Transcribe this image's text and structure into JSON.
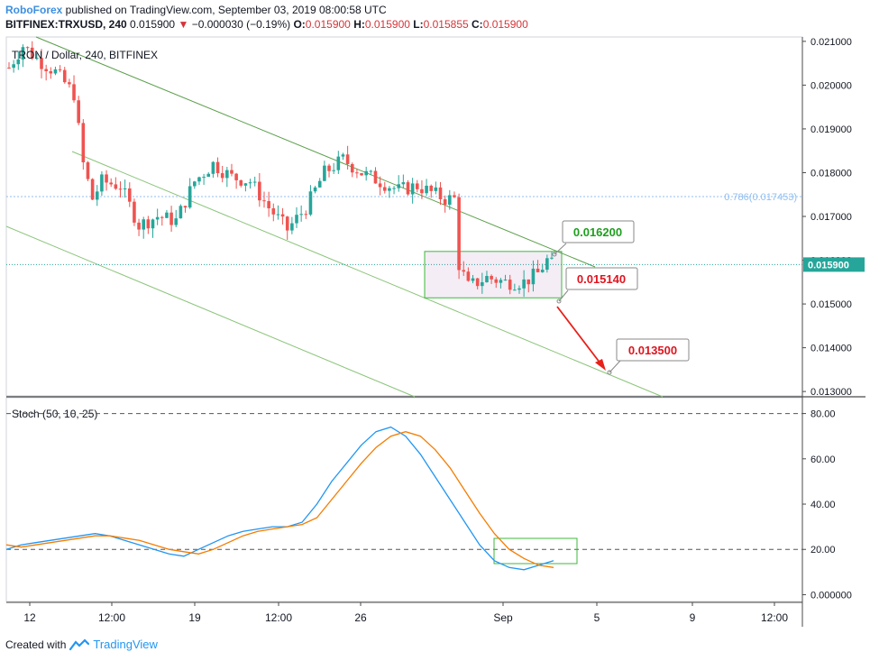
{
  "header": {
    "brand": "RoboForex",
    "published": " published on TradingView.com, September 03, 2019 08:00:58 UTC",
    "symbol": "BITFINEX:TRXUSD, 240",
    "last": "0.015900",
    "change_arrow": "▼",
    "change": "−0.000030 (−0.19%)",
    "o_label": "O:",
    "o_value": "0.015900",
    "h_label": "H:",
    "h_value": "0.015900",
    "l_label": "L:",
    "l_value": "0.015855",
    "c_label": "C:",
    "c_value": "0.015900"
  },
  "footer": {
    "created_with": "Created with",
    "brand": "TradingView"
  },
  "colors": {
    "up": "#26a69a",
    "down": "#ef5350",
    "channel": "#5b9e4a",
    "price_line": "#26a69a",
    "stoch_k": "#2196f3",
    "stoch_d": "#f57c00",
    "fib": "#90bff0"
  },
  "chart_data": [
    {
      "type": "candlestick",
      "legend": "TRON / Dollar, 240, BITFINEX",
      "ylim": [
        0.0129,
        0.0211
      ],
      "y_ticks": [
        "0.021000",
        "0.020000",
        "0.019000",
        "0.018000",
        "0.017000",
        "0.016000",
        "0.015000",
        "0.014000",
        "0.013000"
      ],
      "x_ticks": [
        "12",
        "12:00",
        "19",
        "12:00",
        "26",
        "Sep",
        "5",
        "9",
        "12:00"
      ],
      "current_price": "0.015900",
      "fib_label": "0.786(0.017453)",
      "fib_level": 0.017453,
      "callouts": [
        {
          "text": "0.016200",
          "color": "#1e9e1e"
        },
        {
          "text": "0.015140",
          "color": "#e0141e"
        },
        {
          "text": "0.013500",
          "color": "#e0141e"
        }
      ],
      "range_box": {
        "high": 0.0162,
        "low": 0.01514
      },
      "candles_summary": "~112 four-hour candles from mid-August to 3 Sep 2019, falling from ~0.0209 to ~0.0159"
    },
    {
      "type": "line",
      "legend": "Stoch (50, 10, 25)",
      "ylim": [
        -3,
        87
      ],
      "y_ticks": [
        "80.00",
        "60.00",
        "40.00",
        "20.00",
        "0.000000"
      ],
      "levels": [
        80,
        20
      ],
      "series": [
        {
          "values": [
            20,
            22,
            23,
            24,
            25,
            26,
            27,
            26,
            24,
            22,
            20,
            18,
            17,
            20,
            23,
            26,
            28,
            29,
            30,
            30,
            32,
            40,
            50,
            58,
            66,
            72,
            74,
            70,
            62,
            52,
            42,
            32,
            22,
            15,
            12,
            11,
            13,
            15
          ]
        },
        {
          "values": [
            22,
            21,
            22,
            23,
            24,
            25,
            26,
            26,
            25,
            24,
            22,
            20,
            19,
            18,
            20,
            23,
            26,
            28,
            29,
            30,
            31,
            34,
            42,
            50,
            58,
            65,
            70,
            72,
            70,
            64,
            56,
            46,
            36,
            27,
            20,
            16,
            13,
            12
          ]
        }
      ]
    }
  ]
}
